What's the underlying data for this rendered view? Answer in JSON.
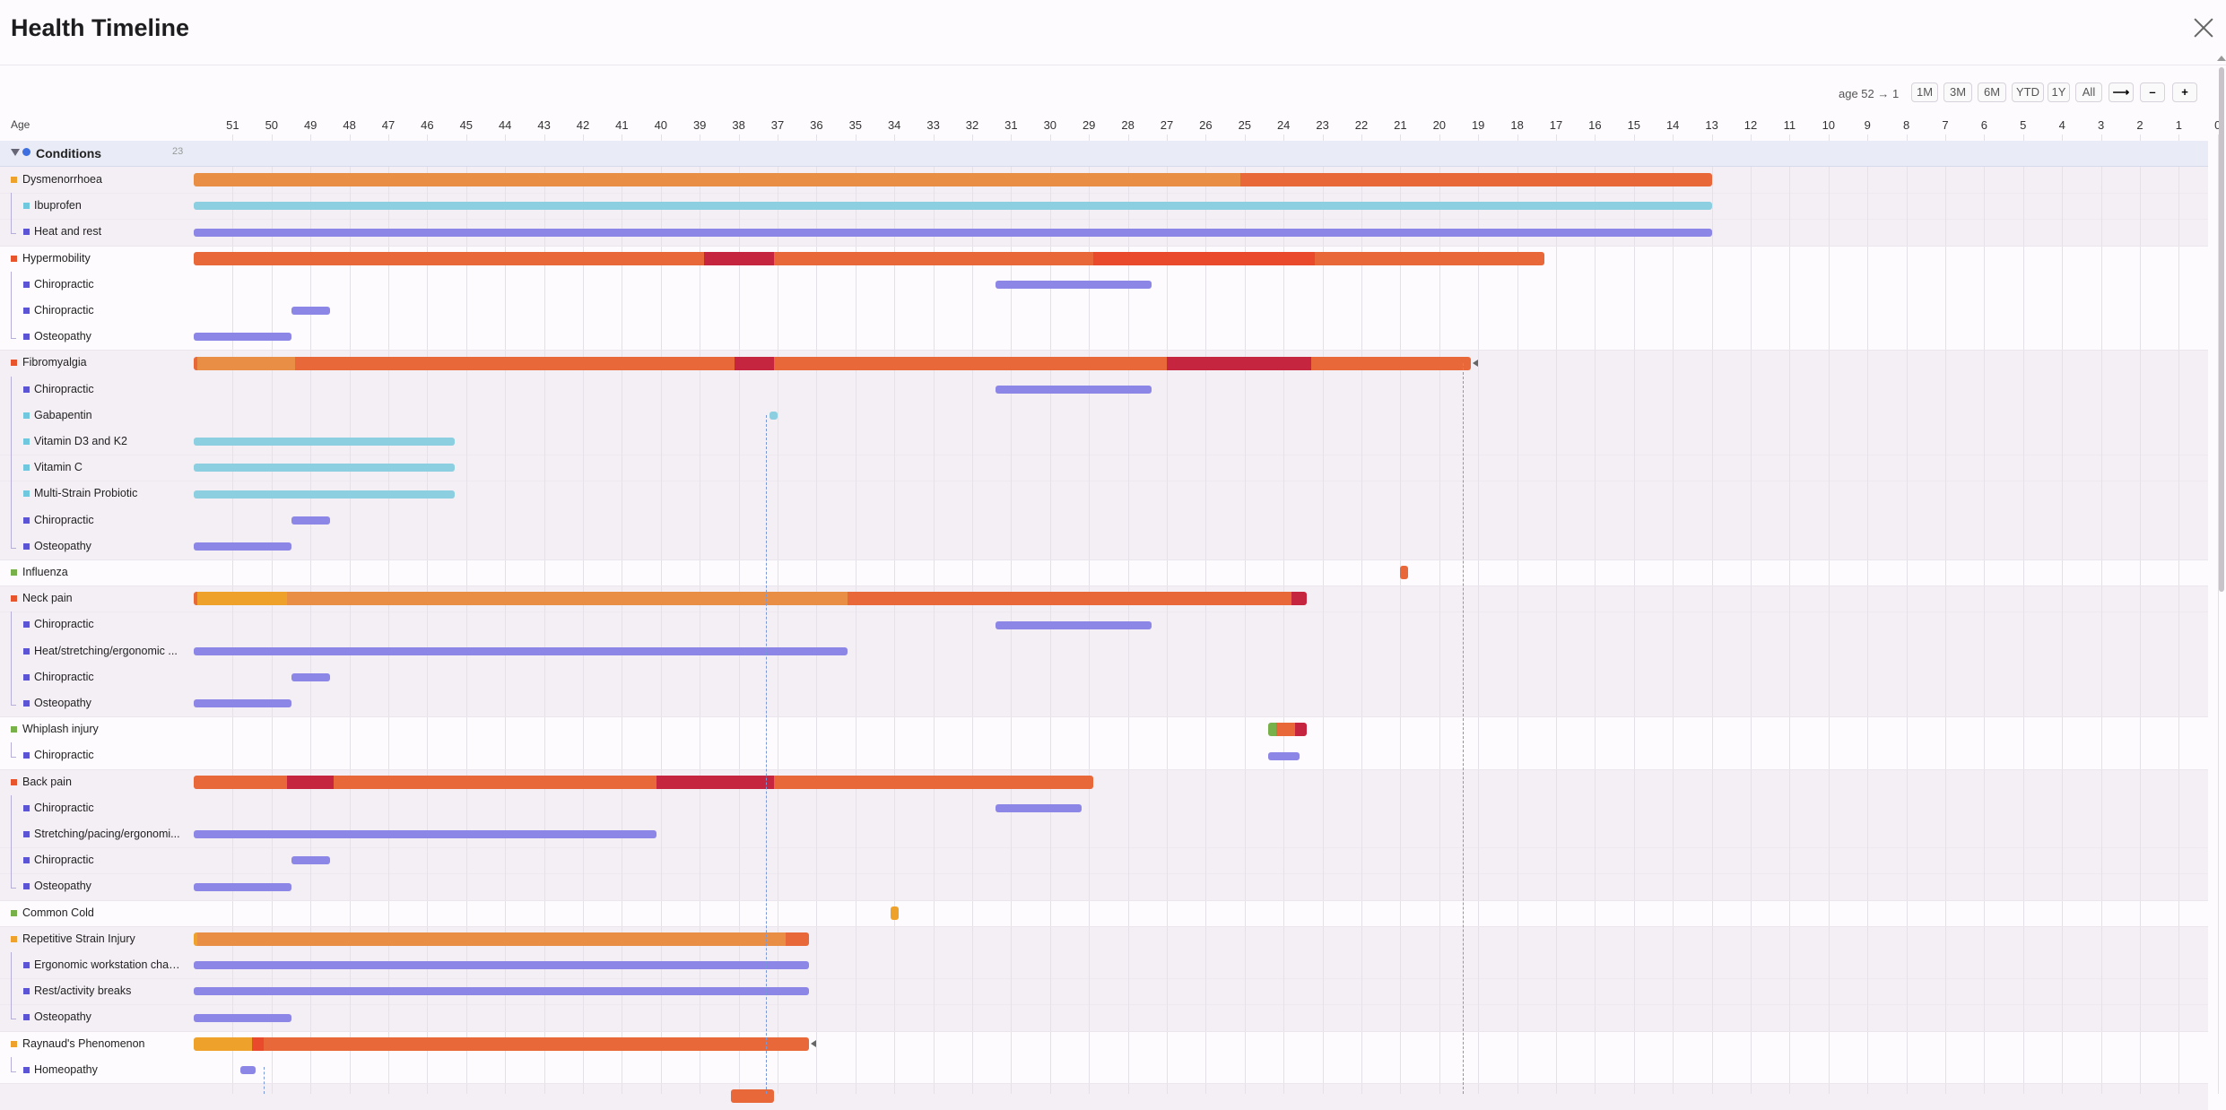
{
  "header": {
    "title": "Health Timeline"
  },
  "toolbar": {
    "range_text": "age 52 → 1",
    "buttons": [
      "1M",
      "3M",
      "6M",
      "YTD",
      "1Y",
      "All",
      "⟶",
      "–",
      "+"
    ]
  },
  "axis": {
    "label": "Age",
    "ticks": [
      51,
      50,
      49,
      48,
      47,
      46,
      45,
      44,
      43,
      42,
      41,
      40,
      39,
      38,
      37,
      36,
      35,
      34,
      33,
      32,
      31,
      30,
      29,
      28,
      27,
      26,
      25,
      24,
      23,
      22,
      21,
      20,
      19,
      18,
      17,
      16,
      15,
      14,
      13,
      12,
      11,
      10,
      9,
      8,
      7,
      6,
      5,
      4,
      3,
      2,
      1,
      0
    ]
  },
  "group": {
    "name": "Conditions",
    "count": "23",
    "dot_color": "#3d6fe0"
  },
  "colors": {
    "mild": "#e98f45",
    "moderate": "#e8683a",
    "severe": "#c5253f",
    "acute": "#ea4a2c",
    "yellow": "#eea22c",
    "treatment": "#8c86e6",
    "medication": "#8ccfe0",
    "green": "#78b04a",
    "guide": "#7a98d8"
  },
  "rows": [
    {
      "label": "Dysmenorrhoea",
      "kind": "condition",
      "sq": "#eea22c",
      "shade": true,
      "bar": [
        [
          52,
          25.1,
          "mild"
        ],
        [
          25.1,
          13,
          "moderate"
        ]
      ]
    },
    {
      "label": "Ibuprofen",
      "kind": "child",
      "sq": "#70c8de",
      "shade": true,
      "bar": [
        [
          52,
          13,
          "medication"
        ]
      ]
    },
    {
      "label": "Heat and rest",
      "kind": "child",
      "sq": "#5b55d6",
      "shade": true,
      "last": true,
      "bar": [
        [
          52,
          13,
          "treatment"
        ]
      ]
    },
    {
      "label": "Hypermobility",
      "kind": "condition",
      "sq": "#e8552c",
      "shade": false,
      "bar": [
        [
          52,
          38.9,
          "moderate"
        ],
        [
          38.9,
          37.1,
          "severe"
        ],
        [
          37.1,
          28.9,
          "moderate"
        ],
        [
          28.9,
          23.2,
          "acute"
        ],
        [
          23.2,
          17.3,
          "moderate"
        ]
      ]
    },
    {
      "label": "Chiropractic",
      "kind": "child",
      "sq": "#5b55d6",
      "shade": false,
      "bar": [
        [
          31.4,
          27.4,
          "treatment"
        ]
      ]
    },
    {
      "label": "Chiropractic",
      "kind": "child",
      "sq": "#5b55d6",
      "shade": false,
      "bar": [
        [
          49.5,
          48.5,
          "treatment"
        ]
      ]
    },
    {
      "label": "Osteopathy",
      "kind": "child",
      "sq": "#5b55d6",
      "shade": false,
      "last": true,
      "bar": [
        [
          52,
          49.5,
          "treatment"
        ]
      ]
    },
    {
      "label": "Fibromyalgia",
      "kind": "condition",
      "sq": "#e8552c",
      "shade": true,
      "marker": true,
      "bar": [
        [
          52,
          51.9,
          "moderate"
        ],
        [
          51.9,
          49.4,
          "mild"
        ],
        [
          49.4,
          38.1,
          "moderate"
        ],
        [
          38.1,
          37.1,
          "severe"
        ],
        [
          37.1,
          36.9,
          "moderate"
        ],
        [
          36.9,
          27.0,
          "moderate"
        ],
        [
          27.0,
          23.3,
          "severe"
        ],
        [
          23.3,
          19.2,
          "moderate"
        ]
      ]
    },
    {
      "label": "Chiropractic",
      "kind": "child",
      "sq": "#5b55d6",
      "shade": true,
      "bar": [
        [
          31.4,
          27.4,
          "treatment"
        ]
      ]
    },
    {
      "label": "Gabapentin",
      "kind": "child",
      "sq": "#70c8de",
      "shade": true,
      "bar": [
        [
          37.2,
          37.0,
          "medication"
        ]
      ]
    },
    {
      "label": "Vitamin D3 and K2",
      "kind": "child",
      "sq": "#70c8de",
      "shade": true,
      "bar": [
        [
          52,
          45.3,
          "medication"
        ]
      ]
    },
    {
      "label": "Vitamin C",
      "kind": "child",
      "sq": "#70c8de",
      "shade": true,
      "bar": [
        [
          52,
          45.3,
          "medication"
        ]
      ]
    },
    {
      "label": "Multi-Strain Probiotic",
      "kind": "child",
      "sq": "#70c8de",
      "shade": true,
      "bar": [
        [
          52,
          45.3,
          "medication"
        ]
      ]
    },
    {
      "label": "Chiropractic",
      "kind": "child",
      "sq": "#5b55d6",
      "shade": true,
      "bar": [
        [
          49.5,
          48.5,
          "treatment"
        ]
      ]
    },
    {
      "label": "Osteopathy",
      "kind": "child",
      "sq": "#5b55d6",
      "shade": true,
      "last": true,
      "bar": [
        [
          52,
          49.5,
          "treatment"
        ]
      ]
    },
    {
      "label": "Influenza",
      "kind": "condition",
      "sq": "#78b04a",
      "shade": false,
      "bar": [
        [
          21.0,
          20.8,
          "moderate"
        ]
      ]
    },
    {
      "label": "Neck pain",
      "kind": "condition",
      "sq": "#e8552c",
      "shade": true,
      "bar": [
        [
          52,
          51.9,
          "moderate"
        ],
        [
          51.9,
          49.6,
          "yellow"
        ],
        [
          49.6,
          35.2,
          "mild"
        ],
        [
          35.2,
          23.8,
          "moderate"
        ],
        [
          23.8,
          23.4,
          "severe"
        ]
      ]
    },
    {
      "label": "Chiropractic",
      "kind": "child",
      "sq": "#5b55d6",
      "shade": true,
      "bar": [
        [
          31.4,
          27.4,
          "treatment"
        ]
      ]
    },
    {
      "label": "Heat/stretching/ergonomic ...",
      "kind": "child",
      "sq": "#5b55d6",
      "shade": true,
      "bar": [
        [
          52,
          35.2,
          "treatment"
        ]
      ]
    },
    {
      "label": "Chiropractic",
      "kind": "child",
      "sq": "#5b55d6",
      "shade": true,
      "bar": [
        [
          49.5,
          48.5,
          "treatment"
        ]
      ]
    },
    {
      "label": "Osteopathy",
      "kind": "child",
      "sq": "#5b55d6",
      "shade": true,
      "last": true,
      "bar": [
        [
          52,
          49.5,
          "treatment"
        ]
      ]
    },
    {
      "label": "Whiplash injury",
      "kind": "condition",
      "sq": "#78b04a",
      "shade": false,
      "bar": [
        [
          24.4,
          24.2,
          "green"
        ],
        [
          24.2,
          23.7,
          "moderate"
        ],
        [
          23.7,
          23.4,
          "severe"
        ]
      ]
    },
    {
      "label": "Chiropractic",
      "kind": "child",
      "sq": "#5b55d6",
      "shade": false,
      "last": true,
      "bar": [
        [
          24.4,
          23.6,
          "treatment"
        ]
      ]
    },
    {
      "label": "Back pain",
      "kind": "condition",
      "sq": "#e8552c",
      "shade": true,
      "bar": [
        [
          52,
          49.6,
          "moderate"
        ],
        [
          49.6,
          48.4,
          "severe"
        ],
        [
          48.4,
          40.1,
          "moderate"
        ],
        [
          40.1,
          37.1,
          "severe"
        ],
        [
          37.1,
          28.9,
          "moderate"
        ]
      ]
    },
    {
      "label": "Chiropractic",
      "kind": "child",
      "sq": "#5b55d6",
      "shade": true,
      "bar": [
        [
          31.4,
          29.2,
          "treatment"
        ]
      ]
    },
    {
      "label": "Stretching/pacing/ergonomi...",
      "kind": "child",
      "sq": "#5b55d6",
      "shade": true,
      "bar": [
        [
          52,
          40.1,
          "treatment"
        ]
      ]
    },
    {
      "label": "Chiropractic",
      "kind": "child",
      "sq": "#5b55d6",
      "shade": true,
      "bar": [
        [
          49.5,
          48.5,
          "treatment"
        ]
      ]
    },
    {
      "label": "Osteopathy",
      "kind": "child",
      "sq": "#5b55d6",
      "shade": true,
      "last": true,
      "bar": [
        [
          52,
          49.5,
          "treatment"
        ]
      ]
    },
    {
      "label": "Common Cold",
      "kind": "condition",
      "sq": "#78b04a",
      "shade": false,
      "bar": [
        [
          34.1,
          33.9,
          "yellow"
        ]
      ]
    },
    {
      "label": "Repetitive Strain Injury",
      "kind": "condition",
      "sq": "#eea22c",
      "shade": true,
      "bar": [
        [
          52,
          51.9,
          "yellow"
        ],
        [
          51.9,
          36.8,
          "mild"
        ],
        [
          36.8,
          36.2,
          "moderate"
        ]
      ]
    },
    {
      "label": "Ergonomic workstation chan...",
      "kind": "child",
      "sq": "#5b55d6",
      "shade": true,
      "bar": [
        [
          52,
          36.2,
          "treatment"
        ]
      ]
    },
    {
      "label": "Rest/activity breaks",
      "kind": "child",
      "sq": "#5b55d6",
      "shade": true,
      "bar": [
        [
          52,
          36.2,
          "treatment"
        ]
      ]
    },
    {
      "label": "Osteopathy",
      "kind": "child",
      "sq": "#5b55d6",
      "shade": true,
      "last": true,
      "bar": [
        [
          52,
          49.5,
          "treatment"
        ]
      ]
    },
    {
      "label": "Raynaud's Phenomenon",
      "kind": "condition",
      "sq": "#eea22c",
      "shade": false,
      "marker": true,
      "bar": [
        [
          52,
          50.5,
          "yellow"
        ],
        [
          50.5,
          50.2,
          "acute"
        ],
        [
          50.2,
          36.2,
          "moderate"
        ]
      ]
    },
    {
      "label": "Homeopathy",
      "kind": "child",
      "sq": "#5b55d6",
      "shade": false,
      "last": true,
      "bar": [
        [
          50.8,
          50.4,
          "treatment"
        ]
      ]
    },
    {
      "label": "",
      "kind": "condition",
      "sq": "",
      "shade": true,
      "bar": [
        [
          38.2,
          37.1,
          "moderate"
        ]
      ]
    }
  ],
  "guides": [
    37.3,
    19.4,
    50.2
  ]
}
